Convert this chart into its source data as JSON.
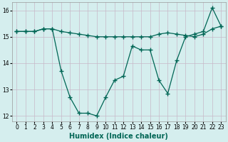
{
  "xlabel": "Humidex (Indice chaleur)",
  "ylabel": "",
  "background_color": "#d5eeee",
  "grid_color": "#c8b8c8",
  "line_color": "#006655",
  "xlim": [
    -0.5,
    23.5
  ],
  "ylim": [
    11.8,
    16.3
  ],
  "yticks": [
    12,
    13,
    14,
    15,
    16
  ],
  "xticks": [
    0,
    1,
    2,
    3,
    4,
    5,
    6,
    7,
    8,
    9,
    10,
    11,
    12,
    13,
    14,
    15,
    16,
    17,
    18,
    19,
    20,
    21,
    22,
    23
  ],
  "line1_x": [
    0,
    1,
    2,
    3,
    4,
    5,
    6,
    7,
    8,
    9,
    10,
    11,
    12,
    13,
    14,
    15,
    16,
    17,
    18,
    19,
    20,
    21,
    22,
    23
  ],
  "line1_y": [
    15.2,
    15.2,
    15.2,
    15.3,
    15.3,
    15.2,
    15.15,
    15.1,
    15.05,
    15.0,
    15.0,
    15.0,
    15.0,
    15.0,
    15.0,
    15.0,
    15.1,
    15.15,
    15.1,
    15.05,
    15.0,
    15.1,
    15.3,
    15.4
  ],
  "line2_x": [
    0,
    1,
    2,
    3,
    4,
    5,
    6,
    7,
    8,
    9,
    10,
    11,
    12,
    13,
    14,
    15,
    16,
    17,
    18,
    19,
    20,
    21,
    22,
    23
  ],
  "line2_y": [
    15.2,
    15.2,
    15.2,
    15.3,
    15.3,
    13.7,
    12.7,
    12.1,
    12.1,
    12.0,
    12.7,
    13.35,
    13.5,
    14.65,
    14.5,
    14.5,
    13.35,
    12.85,
    14.1,
    15.0,
    15.1,
    15.2,
    16.1,
    15.4
  ],
  "xlabel_fontsize": 7,
  "tick_fontsize": 5.5,
  "marker": "+",
  "markersize": 4,
  "linewidth": 0.9
}
